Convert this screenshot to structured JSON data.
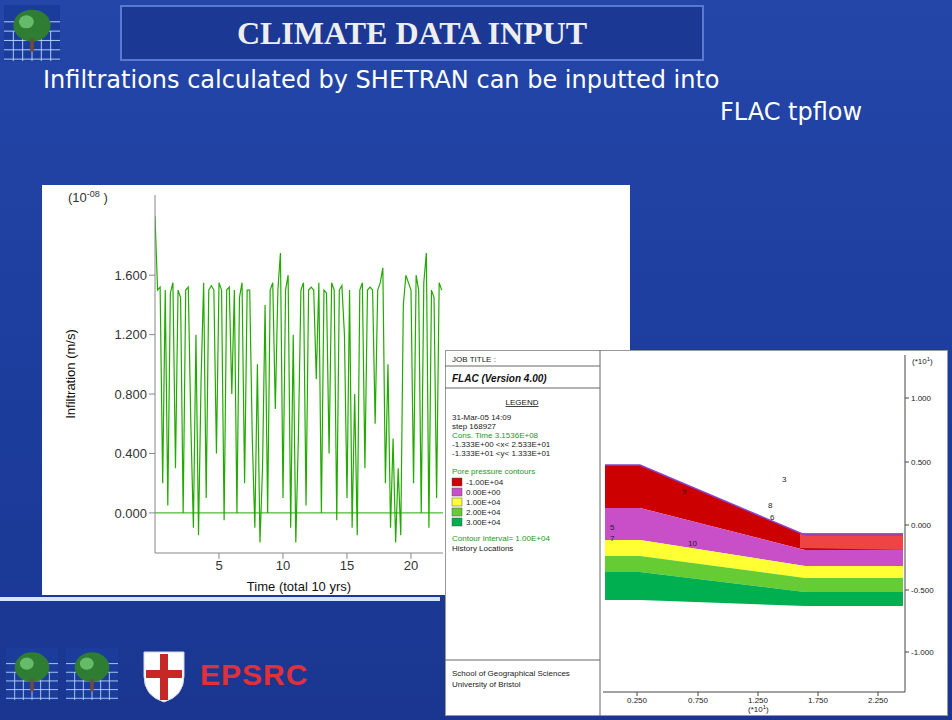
{
  "slide": {
    "title": "CLIMATE DATA INPUT",
    "text": [
      "Infiltrations calculated by SHETRAN can be inputted into",
      "FLAC tpflow"
    ],
    "logos": {
      "funder": "EPSRC"
    }
  },
  "chart_data": {
    "type": "line",
    "x_label": "Time (total 10 yrs)",
    "y_label": "Infiltration (m/s)",
    "y_scale": {
      "base": "(10",
      "exponent": "-08",
      "suffix": " )"
    },
    "color": "#22aa00",
    "x": [
      0,
      0.2,
      0.4,
      0.6,
      0.8,
      1,
      1.2,
      1.4,
      1.6,
      1.8,
      2,
      2.2,
      2.4,
      2.6,
      2.8,
      3,
      3.2,
      3.4,
      3.6,
      3.8,
      4,
      4.2,
      4.4,
      4.6,
      4.8,
      5,
      5.2,
      5.4,
      5.6,
      5.8,
      6,
      6.2,
      6.4,
      6.6,
      6.8,
      7,
      7.2,
      7.4,
      7.6,
      7.8,
      8,
      8.2,
      8.4,
      8.6,
      8.8,
      9,
      9.2,
      9.4,
      9.6,
      9.8,
      10,
      10.2,
      10.4,
      10.6,
      10.8,
      11,
      11.2,
      11.4,
      11.6,
      11.8,
      12,
      12.2,
      12.4,
      12.6,
      12.8,
      13,
      13.2,
      13.4,
      13.6,
      13.8,
      14,
      14.2,
      14.4,
      14.6,
      14.8,
      15,
      15.2,
      15.4,
      15.6,
      15.8,
      16,
      16.2,
      16.4,
      16.6,
      16.8,
      17,
      17.2,
      17.4,
      17.6,
      17.8,
      18,
      18.2,
      18.4,
      18.6,
      18.8,
      19,
      19.2,
      19.4,
      19.6,
      19.8,
      20,
      20.2,
      20.4,
      20.6,
      20.8,
      21,
      21.2,
      21.4,
      21.6,
      21.8,
      22,
      22.2,
      22.4
    ],
    "values": [
      2.0,
      1.5,
      1.52,
      0.2,
      1.5,
      0.05,
      1.48,
      1.55,
      0.3,
      1.5,
      1.45,
      0.0,
      1.5,
      1.52,
      0.6,
      -0.1,
      1.2,
      -0.15,
      0.9,
      1.55,
      0.1,
      1.5,
      1.53,
      1.5,
      0.4,
      1.55,
      1.5,
      -0.05,
      1.5,
      1.52,
      0.8,
      1.5,
      0.0,
      1.45,
      1.55,
      0.2,
      1.5,
      1.5,
      0.5,
      -0.1,
      1.0,
      -0.2,
      0.3,
      1.4,
      0.0,
      1.5,
      1.55,
      0.7,
      1.5,
      1.75,
      0.1,
      1.5,
      1.6,
      -0.1,
      1.2,
      -0.2,
      0.5,
      1.5,
      1.55,
      0.05,
      1.5,
      1.52,
      1.5,
      0.9,
      1.55,
      0.0,
      1.5,
      1.48,
      0.4,
      1.55,
      1.5,
      -0.05,
      1.5,
      1.53,
      1.2,
      0.1,
      1.5,
      -0.1,
      0.8,
      -0.15,
      1.5,
      1.55,
      0.3,
      1.5,
      1.52,
      1.5,
      0.6,
      1.5,
      1.55,
      1.65,
      0.2,
      1.0,
      -0.1,
      0.5,
      -0.2,
      0.3,
      -0.15,
      1.4,
      1.6,
      1.55,
      1.5,
      0.2,
      1.6,
      1.5,
      0.0,
      1.55,
      1.75,
      -0.1,
      1.5,
      1.45,
      0.1,
      1.55,
      1.5
    ],
    "xlim": [
      0,
      22.5
    ],
    "ylim": [
      -0.27,
      2.14
    ],
    "xticks": [
      5,
      10,
      15,
      20
    ],
    "yticks": [
      {
        "value": 0,
        "label": "0.000"
      },
      {
        "value": 0.4,
        "label": "0.400"
      },
      {
        "value": 0.8,
        "label": "0.800"
      },
      {
        "value": 1.2,
        "label": "1.200"
      },
      {
        "value": 1.6,
        "label": "1.600"
      }
    ],
    "reference_lines": [
      0
    ],
    "grid": false
  },
  "flac_plot": {
    "job_title": "JOB TITLE :",
    "program": "FLAC (Version 4.00)",
    "legend_title": "LEGEND",
    "info": [
      "31-Mar-05 14:09",
      "step  168927",
      "Cons. Time   3.1536E+08",
      "-1.333E+00 <x< 2.533E+01",
      "-1.333E+01 <y< 1.333E+01"
    ],
    "contour_title": "Pore pressure contours",
    "contours": [
      {
        "label": "-1.00E+04",
        "color": "#cc0000"
      },
      {
        "label": "0.00E+00",
        "color": "#c84fc8"
      },
      {
        "label": "1.00E+04",
        "color": "#ffff33"
      },
      {
        "label": "2.00E+04",
        "color": "#66cc33"
      },
      {
        "label": "3.00E+04",
        "color": "#00b050"
      }
    ],
    "contour_interval": "Contour interval= 1.00E+04",
    "history": "History Locations",
    "history_labels": [
      "3",
      "9",
      "8",
      "5",
      "7",
      "10",
      "6"
    ],
    "credit": [
      "School of Geographical Sciences",
      "University of Bristol"
    ],
    "axis_scale": {
      "base": "(*10",
      "exponent": "1",
      "suffix": ")"
    },
    "y_ticks": [
      "1.000",
      "0.500",
      "0.000",
      "-0.500",
      "-1.000"
    ],
    "x_ticks": [
      "0.250",
      "0.750",
      "1.250",
      "1.750",
      "2.250"
    ]
  }
}
